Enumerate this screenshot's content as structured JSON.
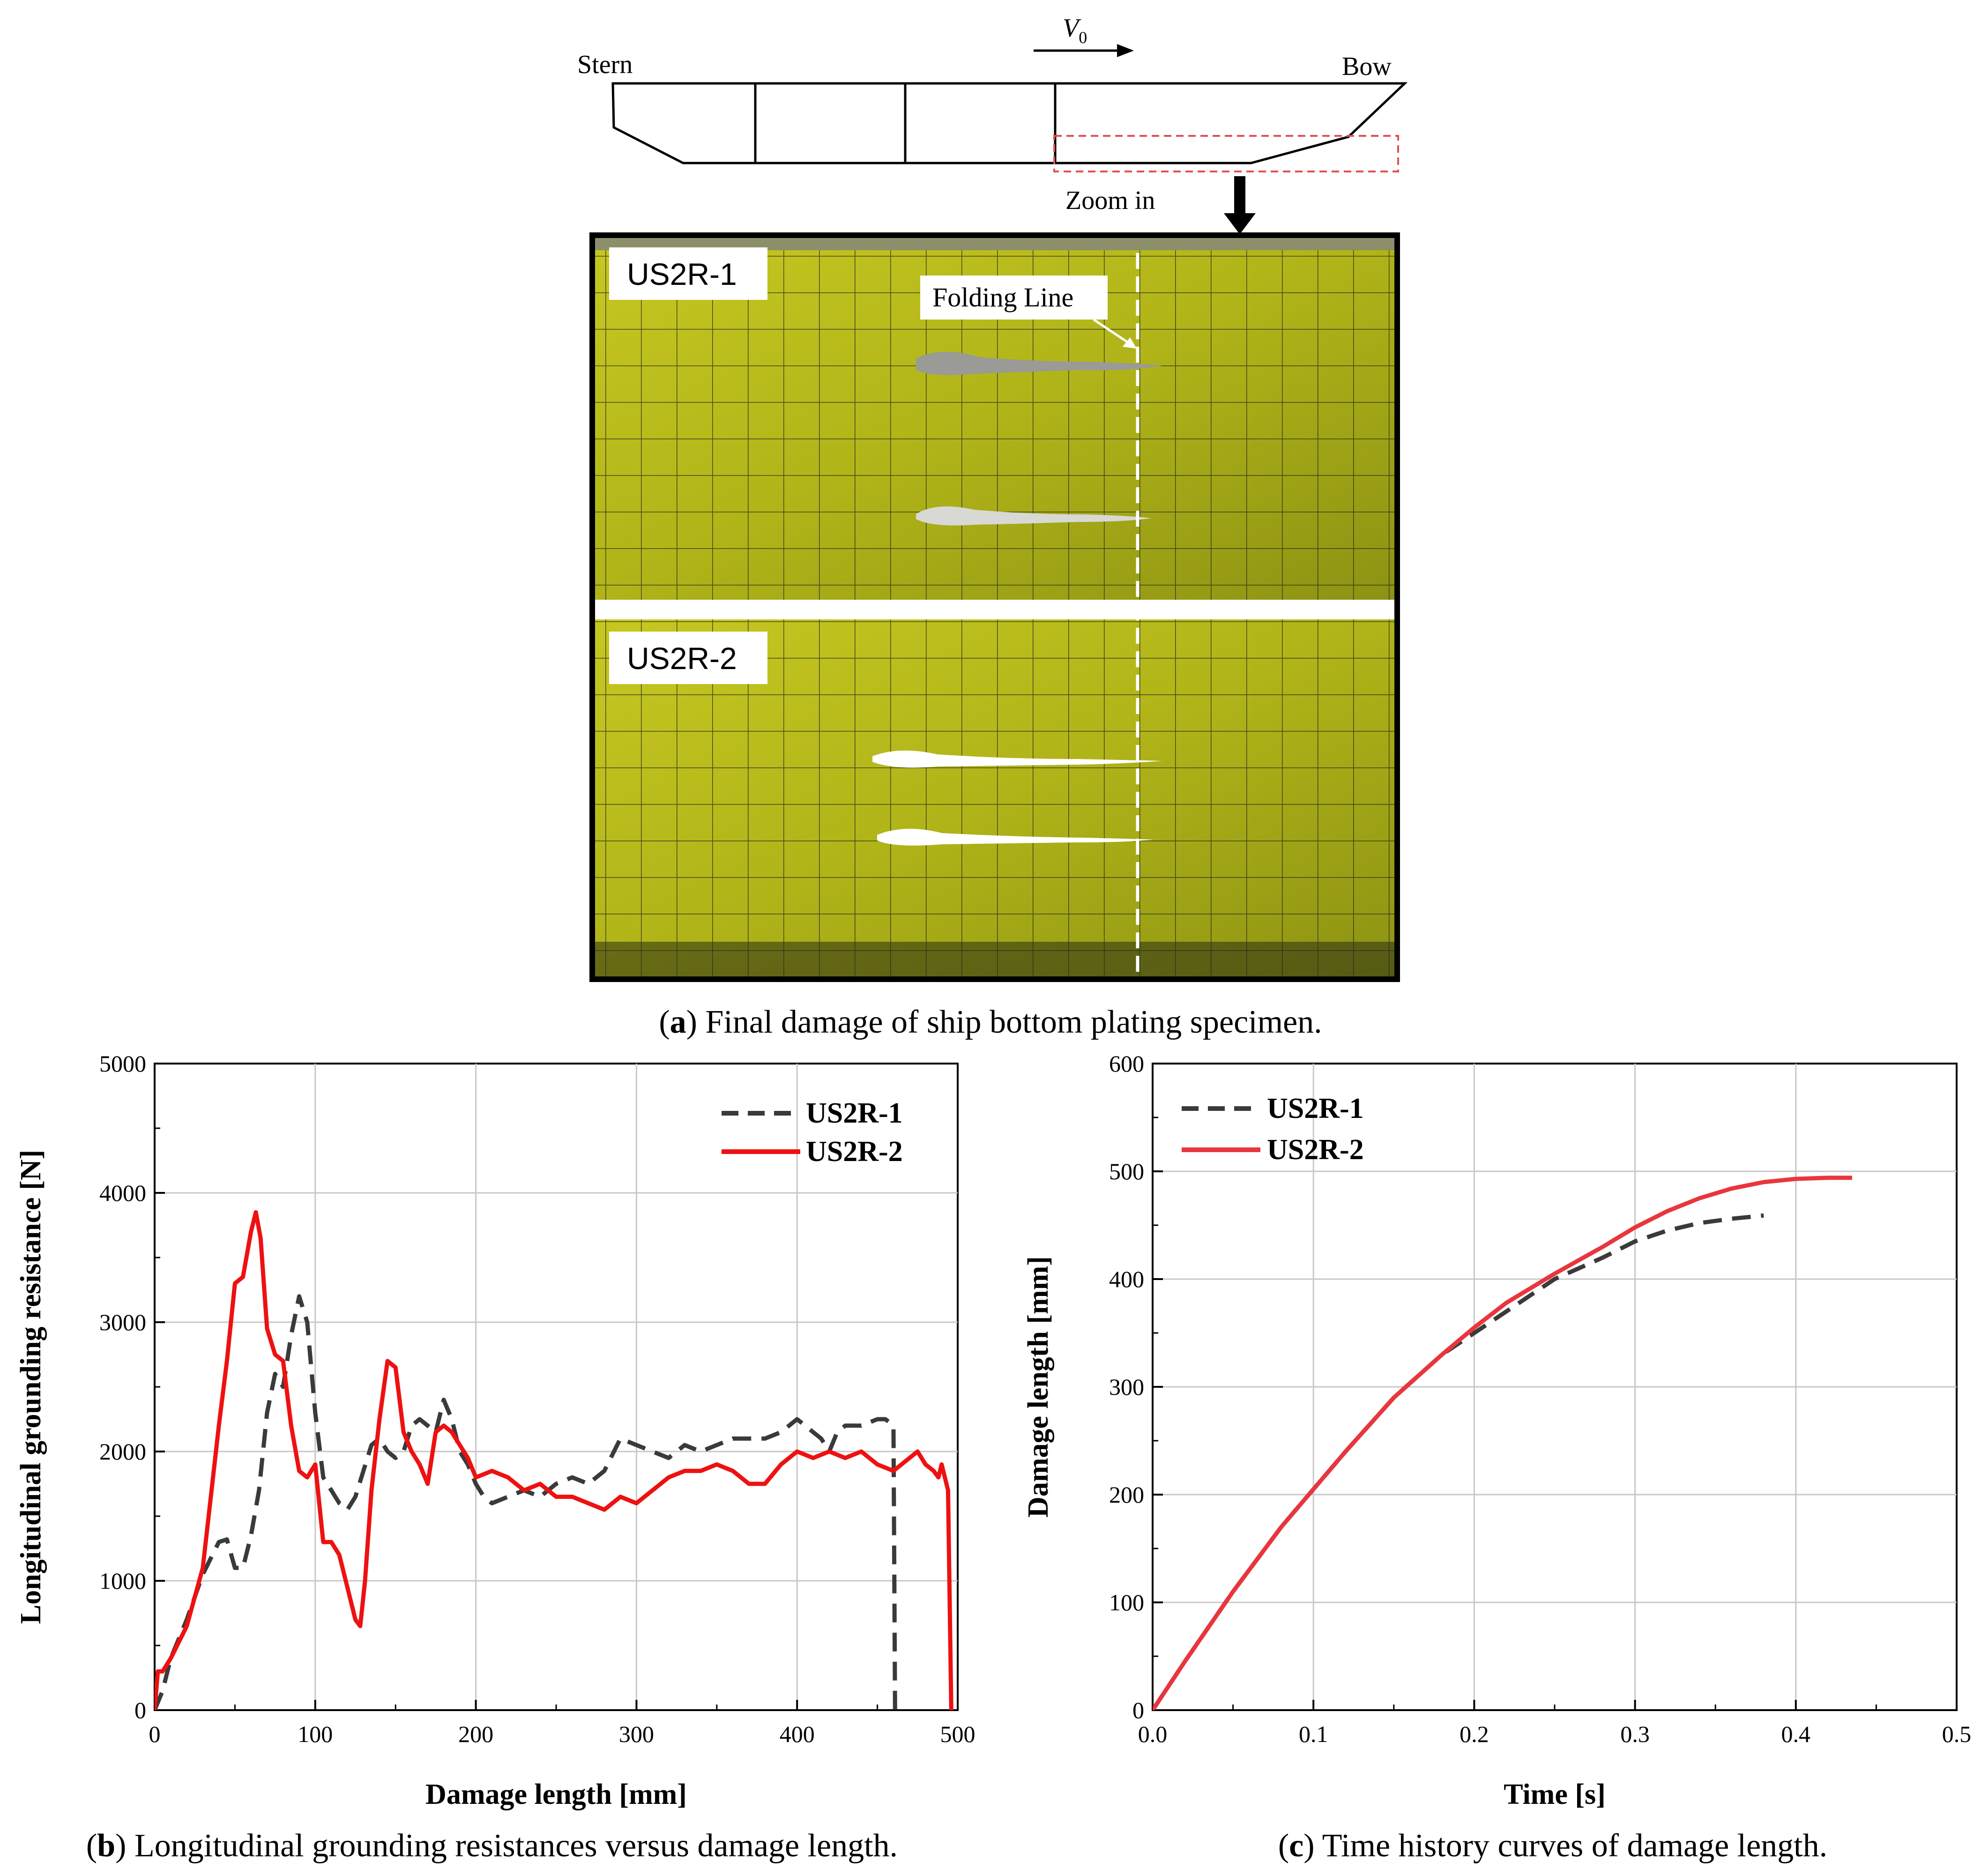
{
  "schematic": {
    "stern_label": "Stern",
    "bow_label": "Bow",
    "velocity_symbol": "V",
    "velocity_subscript": "0",
    "zoom_label": "Zoom in"
  },
  "photo": {
    "panel1_label": "US2R-1",
    "panel2_label": "US2R-2",
    "folding_line_label": "Folding Line",
    "plate_color": "#b5b81c"
  },
  "captions": {
    "a_letter": "a",
    "a_text": ") Final damage of ship bottom plating specimen.",
    "b_letter": "b",
    "b_text": ") Longitudinal grounding resistances versus damage length.",
    "c_letter": "c",
    "c_text": ") Time history curves of damage length."
  },
  "chart_data": [
    {
      "id": "b",
      "type": "line",
      "xlabel": "Damage length [mm]",
      "ylabel": "Longitudinal grounding resistance [N]",
      "xlim": [
        0,
        500
      ],
      "ylim": [
        0,
        5000
      ],
      "xticks": [
        0,
        100,
        200,
        300,
        400,
        500
      ],
      "yticks": [
        0,
        1000,
        2000,
        3000,
        4000,
        5000
      ],
      "grid": true,
      "legend_position": "top-right",
      "series": [
        {
          "name": "US2R-1",
          "style": "dashed",
          "color": "#3a3a3a",
          "x": [
            0,
            5,
            10,
            20,
            30,
            40,
            45,
            50,
            55,
            60,
            65,
            70,
            75,
            80,
            85,
            90,
            95,
            100,
            105,
            110,
            115,
            120,
            125,
            130,
            135,
            140,
            145,
            150,
            155,
            160,
            165,
            170,
            175,
            180,
            185,
            190,
            195,
            200,
            205,
            210,
            220,
            230,
            240,
            250,
            260,
            270,
            280,
            290,
            300,
            310,
            320,
            330,
            340,
            350,
            360,
            370,
            380,
            390,
            400,
            405,
            410,
            415,
            420,
            425,
            430,
            440,
            450,
            455,
            460,
            461,
            463
          ],
          "y": [
            0,
            150,
            400,
            700,
            1050,
            1300,
            1320,
            1100,
            1100,
            1350,
            1700,
            2300,
            2600,
            2500,
            2900,
            3200,
            3000,
            2300,
            1800,
            1700,
            1600,
            1550,
            1650,
            1850,
            2050,
            2100,
            2000,
            1950,
            2000,
            2200,
            2250,
            2200,
            2150,
            2400,
            2250,
            2000,
            1900,
            1750,
            1650,
            1600,
            1650,
            1700,
            1650,
            1750,
            1800,
            1750,
            1850,
            2100,
            2050,
            2000,
            1950,
            2050,
            2000,
            2050,
            2100,
            2100,
            2100,
            2150,
            2250,
            2200,
            2150,
            2100,
            2000,
            2150,
            2200,
            2200,
            2250,
            2250,
            2200,
            0,
            0
          ]
        },
        {
          "name": "US2R-2",
          "style": "solid",
          "color": "#ee1111",
          "x": [
            0,
            2,
            5,
            10,
            20,
            30,
            40,
            45,
            50,
            55,
            60,
            63,
            66,
            70,
            75,
            80,
            85,
            90,
            95,
            100,
            105,
            110,
            115,
            120,
            125,
            128,
            131,
            135,
            140,
            145,
            150,
            155,
            160,
            165,
            170,
            175,
            180,
            185,
            190,
            195,
            200,
            210,
            220,
            230,
            240,
            250,
            260,
            270,
            280,
            290,
            300,
            310,
            320,
            330,
            340,
            350,
            360,
            370,
            380,
            390,
            400,
            410,
            420,
            430,
            440,
            450,
            460,
            470,
            475,
            480,
            485,
            488,
            490,
            492,
            494,
            496
          ],
          "y": [
            0,
            300,
            300,
            400,
            650,
            1100,
            2200,
            2700,
            3300,
            3350,
            3700,
            3850,
            3650,
            2950,
            2750,
            2700,
            2200,
            1850,
            1800,
            1900,
            1300,
            1300,
            1200,
            950,
            700,
            650,
            1000,
            1700,
            2250,
            2700,
            2650,
            2150,
            2000,
            1900,
            1750,
            2150,
            2200,
            2150,
            2050,
            1950,
            1800,
            1850,
            1800,
            1700,
            1750,
            1650,
            1650,
            1600,
            1550,
            1650,
            1600,
            1700,
            1800,
            1850,
            1850,
            1900,
            1850,
            1750,
            1750,
            1900,
            2000,
            1950,
            2000,
            1950,
            2000,
            1900,
            1850,
            1950,
            2000,
            1900,
            1850,
            1800,
            1900,
            1800,
            1700,
            0
          ]
        }
      ]
    },
    {
      "id": "c",
      "type": "line",
      "xlabel": "Time [s]",
      "ylabel": "Damage length [mm]",
      "xlim": [
        0,
        0.5
      ],
      "ylim": [
        0,
        600
      ],
      "xticks": [
        "0.0",
        "0.1",
        "0.2",
        "0.3",
        "0.4",
        "0.5"
      ],
      "yticks": [
        0,
        100,
        200,
        300,
        400,
        500,
        600
      ],
      "grid": true,
      "legend_position": "top-left",
      "series": [
        {
          "name": "US2R-1",
          "style": "dashed",
          "color": "#3a3a3a",
          "x": [
            0,
            0.02,
            0.05,
            0.08,
            0.1,
            0.12,
            0.15,
            0.18,
            0.2,
            0.22,
            0.25,
            0.28,
            0.3,
            0.32,
            0.34,
            0.36,
            0.38
          ],
          "y": [
            0,
            45,
            110,
            170,
            205,
            240,
            290,
            330,
            350,
            370,
            400,
            420,
            435,
            445,
            452,
            456,
            459
          ]
        },
        {
          "name": "US2R-2",
          "style": "solid",
          "color": "#e8363e",
          "x": [
            0,
            0.02,
            0.05,
            0.08,
            0.1,
            0.12,
            0.15,
            0.18,
            0.2,
            0.22,
            0.25,
            0.28,
            0.3,
            0.32,
            0.34,
            0.36,
            0.38,
            0.4,
            0.42,
            0.435
          ],
          "y": [
            0,
            45,
            110,
            170,
            205,
            240,
            290,
            330,
            355,
            378,
            405,
            430,
            448,
            463,
            475,
            484,
            490,
            493,
            494,
            494
          ]
        }
      ]
    }
  ]
}
